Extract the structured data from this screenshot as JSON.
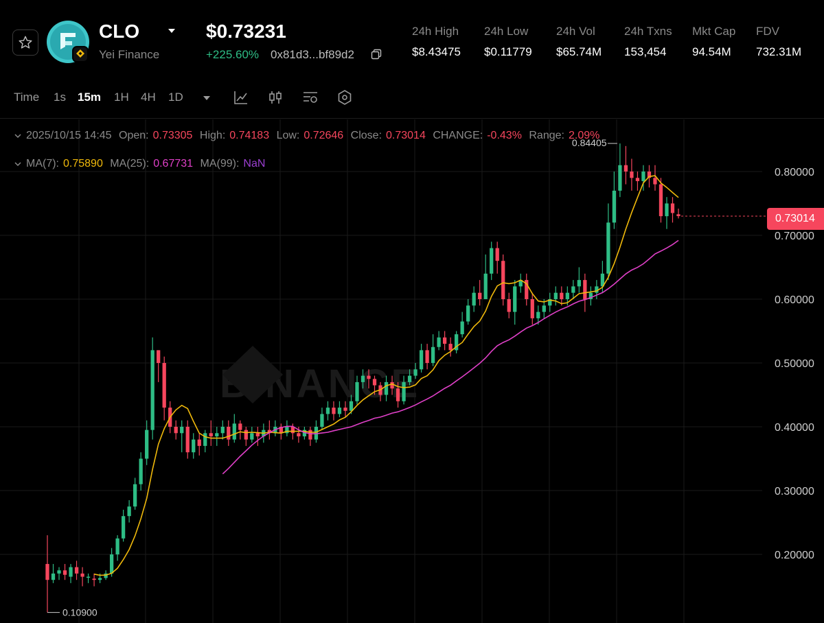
{
  "header": {
    "token_symbol": "CLO",
    "token_project": "Yei Finance",
    "price": "$0.73231",
    "change_pct": "+225.60%",
    "address": "0x81d3...bf89d2",
    "icons": {
      "favorite": "star-icon",
      "logo": "yei-finance-logo",
      "chain_badge": "bnb-chain-icon",
      "dropdown": "caret-down-icon",
      "copy": "copy-icon"
    },
    "stats": [
      {
        "label": "24h High",
        "value": "$8.43475"
      },
      {
        "label": "24h Low",
        "value": "$0.11779"
      },
      {
        "label": "24h Vol",
        "value": "$65.74M"
      },
      {
        "label": "24h Txns",
        "value": "153,454"
      },
      {
        "label": "Mkt Cap",
        "value": "94.54M"
      },
      {
        "label": "FDV",
        "value": "732.31M"
      }
    ]
  },
  "toolbar": {
    "time_label": "Time",
    "intervals": [
      "1s",
      "15m",
      "1H",
      "4H",
      "1D"
    ],
    "active_interval": "15m",
    "tools": [
      "line-chart-icon",
      "candlestick-icon",
      "indicators-icon",
      "settings-hex-icon"
    ]
  },
  "ohlc": {
    "date": "2025/10/15 14:45",
    "open_label": "Open:",
    "open": "0.73305",
    "high_label": "High:",
    "high": "0.74183",
    "low_label": "Low:",
    "low": "0.72646",
    "close_label": "Close:",
    "close": "0.73014",
    "change_label": "CHANGE:",
    "change": "-0.43%",
    "range_label": "Range:",
    "range": "2.09%"
  },
  "ma": {
    "ma7_label": "MA(7):",
    "ma7": "0.75890",
    "ma25_label": "MA(25):",
    "ma25": "0.67731",
    "ma99_label": "MA(99):",
    "ma99": "NaN"
  },
  "colors": {
    "up": "#2ebd85",
    "down": "#f6465d",
    "ma7": "#f0b90b",
    "ma25": "#e040c8",
    "background": "#000000",
    "grid": "#1a1a1a"
  },
  "chart_data": {
    "type": "candlestick",
    "y_ticks": [
      "0.80000",
      "0.70000",
      "0.60000",
      "0.50000",
      "0.40000",
      "0.30000",
      "0.20000"
    ],
    "y_tick_values": [
      0.8,
      0.7,
      0.6,
      0.5,
      0.4,
      0.3,
      0.2
    ],
    "ylim": [
      0.095,
      0.875
    ],
    "last_price": "0.73014",
    "last_price_value": 0.73014,
    "max_marker": "0.84405",
    "max_marker_value": 0.84405,
    "min_marker": "0.10900",
    "min_marker_value": 0.109,
    "watermark": "BINANCE",
    "candles": [
      [
        0.185,
        0.16,
        0.23,
        0.109
      ],
      [
        0.16,
        0.17,
        0.185,
        0.155
      ],
      [
        0.17,
        0.175,
        0.18,
        0.16
      ],
      [
        0.175,
        0.168,
        0.185,
        0.16
      ],
      [
        0.165,
        0.18,
        0.185,
        0.155
      ],
      [
        0.18,
        0.17,
        0.19,
        0.16
      ],
      [
        0.17,
        0.165,
        0.18,
        0.15
      ],
      [
        0.165,
        0.165,
        0.17,
        0.155
      ],
      [
        0.162,
        0.16,
        0.17,
        0.15
      ],
      [
        0.16,
        0.163,
        0.17,
        0.155
      ],
      [
        0.163,
        0.17,
        0.175,
        0.16
      ],
      [
        0.17,
        0.2,
        0.21,
        0.165
      ],
      [
        0.2,
        0.225,
        0.23,
        0.19
      ],
      [
        0.225,
        0.26,
        0.27,
        0.22
      ],
      [
        0.26,
        0.275,
        0.285,
        0.25
      ],
      [
        0.275,
        0.31,
        0.32,
        0.27
      ],
      [
        0.31,
        0.35,
        0.36,
        0.3
      ],
      [
        0.35,
        0.395,
        0.41,
        0.34
      ],
      [
        0.395,
        0.52,
        0.54,
        0.38
      ],
      [
        0.52,
        0.5,
        0.52,
        0.47
      ],
      [
        0.5,
        0.43,
        0.51,
        0.41
      ],
      [
        0.43,
        0.4,
        0.44,
        0.39
      ],
      [
        0.4,
        0.39,
        0.41,
        0.38
      ],
      [
        0.39,
        0.4,
        0.41,
        0.36
      ],
      [
        0.4,
        0.36,
        0.41,
        0.35
      ],
      [
        0.36,
        0.38,
        0.39,
        0.35
      ],
      [
        0.38,
        0.37,
        0.39,
        0.355
      ],
      [
        0.37,
        0.39,
        0.395,
        0.36
      ],
      [
        0.39,
        0.385,
        0.41,
        0.37
      ],
      [
        0.385,
        0.39,
        0.4,
        0.37
      ],
      [
        0.39,
        0.4,
        0.41,
        0.38
      ],
      [
        0.4,
        0.38,
        0.41,
        0.37
      ],
      [
        0.38,
        0.405,
        0.42,
        0.375
      ],
      [
        0.405,
        0.395,
        0.41,
        0.38
      ],
      [
        0.395,
        0.38,
        0.4,
        0.37
      ],
      [
        0.38,
        0.39,
        0.4,
        0.375
      ],
      [
        0.39,
        0.385,
        0.4,
        0.37
      ],
      [
        0.385,
        0.395,
        0.405,
        0.375
      ],
      [
        0.395,
        0.39,
        0.41,
        0.38
      ],
      [
        0.39,
        0.4,
        0.41,
        0.385
      ],
      [
        0.4,
        0.39,
        0.405,
        0.38
      ],
      [
        0.39,
        0.4,
        0.41,
        0.385
      ],
      [
        0.4,
        0.39,
        0.405,
        0.38
      ],
      [
        0.39,
        0.385,
        0.4,
        0.375
      ],
      [
        0.385,
        0.395,
        0.4,
        0.38
      ],
      [
        0.395,
        0.38,
        0.4,
        0.37
      ],
      [
        0.38,
        0.4,
        0.41,
        0.375
      ],
      [
        0.4,
        0.42,
        0.43,
        0.395
      ],
      [
        0.42,
        0.43,
        0.44,
        0.41
      ],
      [
        0.43,
        0.42,
        0.44,
        0.41
      ],
      [
        0.42,
        0.43,
        0.44,
        0.415
      ],
      [
        0.43,
        0.425,
        0.44,
        0.415
      ],
      [
        0.425,
        0.44,
        0.45,
        0.42
      ],
      [
        0.44,
        0.47,
        0.48,
        0.435
      ],
      [
        0.47,
        0.48,
        0.49,
        0.46
      ],
      [
        0.48,
        0.475,
        0.49,
        0.46
      ],
      [
        0.475,
        0.465,
        0.48,
        0.45
      ],
      [
        0.465,
        0.45,
        0.47,
        0.44
      ],
      [
        0.45,
        0.47,
        0.48,
        0.44
      ],
      [
        0.47,
        0.46,
        0.48,
        0.45
      ],
      [
        0.46,
        0.44,
        0.47,
        0.43
      ],
      [
        0.44,
        0.47,
        0.48,
        0.435
      ],
      [
        0.47,
        0.48,
        0.49,
        0.465
      ],
      [
        0.48,
        0.49,
        0.5,
        0.475
      ],
      [
        0.49,
        0.52,
        0.53,
        0.485
      ],
      [
        0.52,
        0.5,
        0.53,
        0.49
      ],
      [
        0.5,
        0.525,
        0.545,
        0.495
      ],
      [
        0.525,
        0.54,
        0.55,
        0.52
      ],
      [
        0.54,
        0.53,
        0.55,
        0.52
      ],
      [
        0.53,
        0.52,
        0.54,
        0.51
      ],
      [
        0.52,
        0.545,
        0.55,
        0.515
      ],
      [
        0.545,
        0.565,
        0.58,
        0.54
      ],
      [
        0.565,
        0.59,
        0.6,
        0.56
      ],
      [
        0.59,
        0.61,
        0.62,
        0.58
      ],
      [
        0.61,
        0.6,
        0.63,
        0.59
      ],
      [
        0.6,
        0.64,
        0.67,
        0.6
      ],
      [
        0.64,
        0.68,
        0.69,
        0.63
      ],
      [
        0.68,
        0.66,
        0.69,
        0.64
      ],
      [
        0.66,
        0.6,
        0.67,
        0.59
      ],
      [
        0.6,
        0.58,
        0.61,
        0.57
      ],
      [
        0.58,
        0.62,
        0.63,
        0.56
      ],
      [
        0.62,
        0.63,
        0.64,
        0.61
      ],
      [
        0.63,
        0.6,
        0.64,
        0.59
      ],
      [
        0.6,
        0.57,
        0.61,
        0.56
      ],
      [
        0.57,
        0.58,
        0.59,
        0.56
      ],
      [
        0.58,
        0.59,
        0.6,
        0.57
      ],
      [
        0.59,
        0.6,
        0.61,
        0.58
      ],
      [
        0.6,
        0.61,
        0.62,
        0.59
      ],
      [
        0.61,
        0.6,
        0.62,
        0.59
      ],
      [
        0.6,
        0.61,
        0.62,
        0.59
      ],
      [
        0.61,
        0.62,
        0.63,
        0.6
      ],
      [
        0.62,
        0.63,
        0.65,
        0.61
      ],
      [
        0.63,
        0.6,
        0.64,
        0.58
      ],
      [
        0.6,
        0.61,
        0.62,
        0.59
      ],
      [
        0.61,
        0.62,
        0.63,
        0.6
      ],
      [
        0.62,
        0.64,
        0.66,
        0.61
      ],
      [
        0.64,
        0.72,
        0.75,
        0.63
      ],
      [
        0.72,
        0.77,
        0.8,
        0.71
      ],
      [
        0.77,
        0.81,
        0.844,
        0.76
      ],
      [
        0.81,
        0.8,
        0.84,
        0.78
      ],
      [
        0.8,
        0.79,
        0.82,
        0.77
      ],
      [
        0.79,
        0.785,
        0.8,
        0.77
      ],
      [
        0.785,
        0.8,
        0.81,
        0.77
      ],
      [
        0.8,
        0.79,
        0.81,
        0.775
      ],
      [
        0.79,
        0.78,
        0.81,
        0.77
      ],
      [
        0.78,
        0.73,
        0.79,
        0.72
      ],
      [
        0.73,
        0.75,
        0.76,
        0.71
      ],
      [
        0.75,
        0.735,
        0.76,
        0.72
      ],
      [
        0.73305,
        0.73014,
        0.74183,
        0.72646
      ]
    ]
  }
}
